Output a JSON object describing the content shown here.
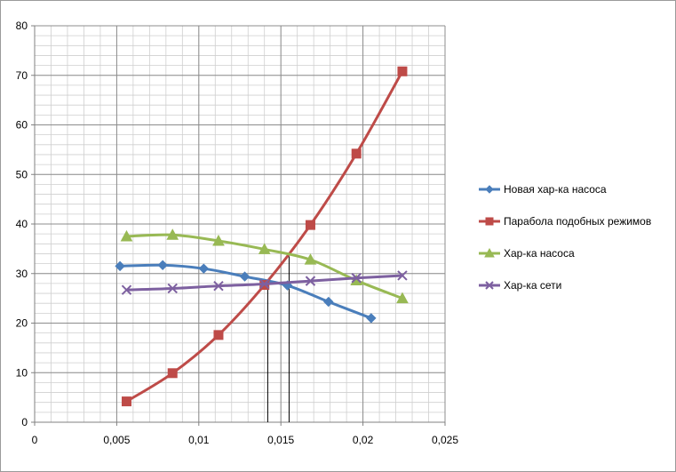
{
  "chart_data": {
    "type": "line",
    "title": "",
    "xlabel": "",
    "ylabel": "",
    "xlim": [
      0,
      0.025
    ],
    "ylim": [
      0,
      80
    ],
    "x_ticks": [
      "0",
      "0,005",
      "0,01",
      "0,015",
      "0,02",
      "0,025"
    ],
    "y_ticks": [
      "0",
      "10",
      "20",
      "30",
      "40",
      "50",
      "60",
      "70",
      "80"
    ],
    "grid": true,
    "legend_position": "right",
    "series": [
      {
        "name": "Новая хар-ка насоса",
        "color": "#4a7ebb",
        "marker": "diamond",
        "x": [
          0.0052,
          0.0078,
          0.0103,
          0.0128,
          0.0154,
          0.0179,
          0.0205
        ],
        "y": [
          31.5,
          31.7,
          31.0,
          29.4,
          27.6,
          24.3,
          21.0
        ]
      },
      {
        "name": "Парабола подобных  режимов",
        "color": "#be4b48",
        "marker": "square",
        "x": [
          0.0056,
          0.0084,
          0.0112,
          0.014,
          0.0168,
          0.0196,
          0.0224
        ],
        "y": [
          4.2,
          9.9,
          17.6,
          27.7,
          39.8,
          54.2,
          70.8
        ]
      },
      {
        "name": "Хар-ка насоса",
        "color": "#98b954",
        "marker": "triangle",
        "x": [
          0.0056,
          0.0084,
          0.0112,
          0.014,
          0.0168,
          0.0196,
          0.0224
        ],
        "y": [
          37.5,
          37.8,
          36.6,
          34.9,
          32.8,
          28.6,
          25.0
        ]
      },
      {
        "name": "Хар-ка сети",
        "color": "#7d60a0",
        "marker": "x",
        "x": [
          0.0056,
          0.0084,
          0.0112,
          0.014,
          0.0168,
          0.0196,
          0.0224
        ],
        "y": [
          26.7,
          27.0,
          27.5,
          27.9,
          28.5,
          29.1,
          29.6
        ]
      }
    ],
    "annotations": [
      {
        "type": "vline",
        "x": 0.0142,
        "y": 28.0
      },
      {
        "type": "vline",
        "x": 0.0155,
        "y": 33.5
      }
    ]
  }
}
